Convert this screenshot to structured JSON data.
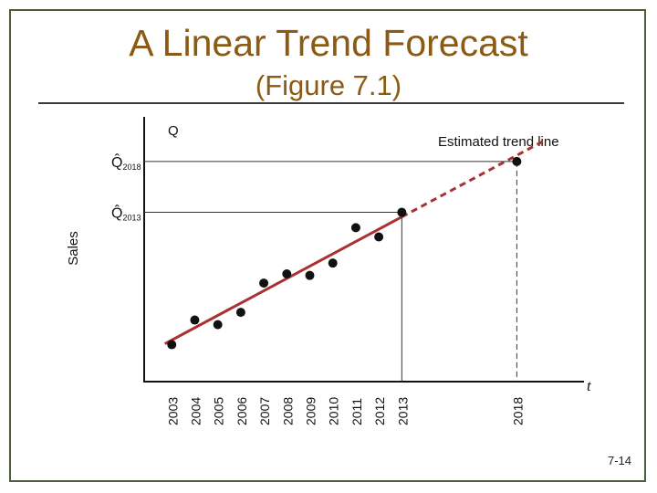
{
  "slide": {
    "title": "A Linear Trend Forecast",
    "subtitle": "(Figure 7.1)",
    "page_number": "7-14"
  },
  "chart_data": {
    "type": "scatter",
    "ylabel": "Sales",
    "y_axis_letter": "Q",
    "x_axis_letter": "t",
    "trend_line_label": "Estimated trend line",
    "forecast_labels": [
      {
        "symbol": "Q̂",
        "subscript": "2018",
        "year": 2018
      },
      {
        "symbol": "Q̂",
        "subscript": "2013",
        "year": 2013
      }
    ],
    "x_ticks": [
      "2003",
      "2004",
      "2005",
      "2006",
      "2007",
      "2008",
      "2009",
      "2010",
      "2011",
      "2012",
      "2013",
      "2018"
    ],
    "points": [
      {
        "x": 2003,
        "y": 12.0
      },
      {
        "x": 2004,
        "y": 20.0
      },
      {
        "x": 2005,
        "y": 18.5
      },
      {
        "x": 2006,
        "y": 22.5
      },
      {
        "x": 2007,
        "y": 32.0
      },
      {
        "x": 2008,
        "y": 35.0
      },
      {
        "x": 2009,
        "y": 34.5
      },
      {
        "x": 2010,
        "y": 38.5
      },
      {
        "x": 2011,
        "y": 50.0
      },
      {
        "x": 2012,
        "y": 47.0
      },
      {
        "x": 2013,
        "y": 55.0
      },
      {
        "x": 2018,
        "y": 71.5
      }
    ],
    "trend_line": {
      "x_start": 2003,
      "y_start": 13.5,
      "x_end": 2018,
      "y_end": 73.5,
      "solid_until": 2013
    },
    "xlim": [
      2001.8,
      2021
    ],
    "ylim": [
      0,
      86
    ],
    "grid": false,
    "colors": {
      "trend": "#a83232",
      "points": "#111111"
    }
  }
}
